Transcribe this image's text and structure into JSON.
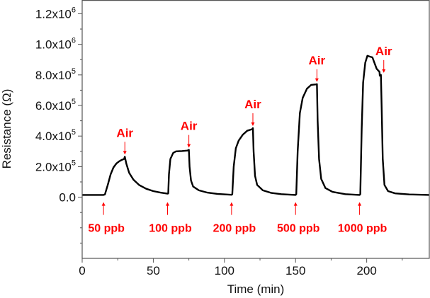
{
  "chart_data": {
    "type": "line",
    "title": "",
    "xlabel": "Time (min)",
    "ylabel": "Resistance (Ω)",
    "xlim": [
      0,
      244
    ],
    "ylim": [
      -400000,
      1290000
    ],
    "grid": false,
    "x_ticks": [
      0,
      50,
      100,
      150,
      200
    ],
    "x_tick_labels": [
      "0",
      "50",
      "100",
      "150",
      "200"
    ],
    "x_minor_step": 25,
    "y_ticks": [
      0,
      200000,
      400000,
      600000,
      800000,
      1000000,
      1200000
    ],
    "y_tick_labels": [
      {
        "base": "0.0",
        "sup": ""
      },
      {
        "base": "2.0x10",
        "sup": "5"
      },
      {
        "base": "4.0x10",
        "sup": "5"
      },
      {
        "base": "6.0x10",
        "sup": "5"
      },
      {
        "base": "8.0x10",
        "sup": "5"
      },
      {
        "base": "1.0x10",
        "sup": "6"
      },
      {
        "base": "1.2x10",
        "sup": "6"
      }
    ],
    "y_minor_step": 100000,
    "series": [
      {
        "name": "Resistance",
        "color": "#000000",
        "points": [
          [
            0,
            15000
          ],
          [
            15,
            15000
          ],
          [
            16,
            18000
          ],
          [
            18,
            80000
          ],
          [
            20,
            150000
          ],
          [
            22,
            195000
          ],
          [
            24,
            220000
          ],
          [
            26,
            235000
          ],
          [
            28,
            245000
          ],
          [
            29.5,
            250000
          ],
          [
            30,
            265000
          ],
          [
            31,
            220000
          ],
          [
            33,
            160000
          ],
          [
            36,
            115000
          ],
          [
            40,
            80000
          ],
          [
            45,
            55000
          ],
          [
            50,
            40000
          ],
          [
            55,
            30000
          ],
          [
            60,
            23000
          ],
          [
            60.5,
            25000
          ],
          [
            61,
            150000
          ],
          [
            62,
            250000
          ],
          [
            64,
            290000
          ],
          [
            66,
            300000
          ],
          [
            70,
            302000
          ],
          [
            74,
            305000
          ],
          [
            75,
            310000
          ],
          [
            75.5,
            200000
          ],
          [
            76.5,
            110000
          ],
          [
            78,
            70000
          ],
          [
            82,
            45000
          ],
          [
            88,
            30000
          ],
          [
            95,
            22000
          ],
          [
            105,
            16000
          ],
          [
            105.5,
            20000
          ],
          [
            106.5,
            200000
          ],
          [
            108,
            320000
          ],
          [
            110,
            370000
          ],
          [
            113,
            410000
          ],
          [
            116,
            435000
          ],
          [
            119.5,
            445000
          ],
          [
            120,
            452000
          ],
          [
            120.5,
            300000
          ],
          [
            121.5,
            140000
          ],
          [
            123,
            80000
          ],
          [
            127,
            45000
          ],
          [
            133,
            28000
          ],
          [
            140,
            20000
          ],
          [
            150,
            15000
          ],
          [
            150.5,
            20000
          ],
          [
            151.5,
            300000
          ],
          [
            153,
            550000
          ],
          [
            155,
            650000
          ],
          [
            158,
            710000
          ],
          [
            161,
            735000
          ],
          [
            164.5,
            738000
          ],
          [
            165,
            740000
          ],
          [
            165.5,
            500000
          ],
          [
            166.5,
            250000
          ],
          [
            168,
            120000
          ],
          [
            171,
            60000
          ],
          [
            176,
            35000
          ],
          [
            185,
            20000
          ],
          [
            195,
            15000
          ],
          [
            195.5,
            20000
          ],
          [
            196.5,
            450000
          ],
          [
            197.5,
            750000
          ],
          [
            199,
            880000
          ],
          [
            200.5,
            925000
          ],
          [
            202,
            920000
          ],
          [
            204,
            915000
          ],
          [
            205,
            890000
          ],
          [
            207,
            840000
          ],
          [
            209,
            820000
          ],
          [
            209.2,
            795000
          ],
          [
            210,
            800000
          ],
          [
            210.5,
            600000
          ],
          [
            211.3,
            250000
          ],
          [
            212.5,
            80000
          ],
          [
            215,
            40000
          ],
          [
            220,
            25000
          ],
          [
            230,
            18000
          ],
          [
            244,
            15000
          ]
        ]
      }
    ],
    "annotations": {
      "color": "#ff0000",
      "air": [
        {
          "label": "Air",
          "x": 30
        },
        {
          "label": "Air",
          "x": 75
        },
        {
          "label": "Air",
          "x": 120
        },
        {
          "label": "Air",
          "x": 165
        },
        {
          "label": "Air",
          "x": 212
        }
      ],
      "gas": [
        {
          "label": "50 ppb",
          "x": 15
        },
        {
          "label": "100 ppb",
          "x": 60
        },
        {
          "label": "200 ppb",
          "x": 105
        },
        {
          "label": "500 ppb",
          "x": 150
        },
        {
          "label": "1000 ppb",
          "x": 195
        }
      ]
    }
  }
}
